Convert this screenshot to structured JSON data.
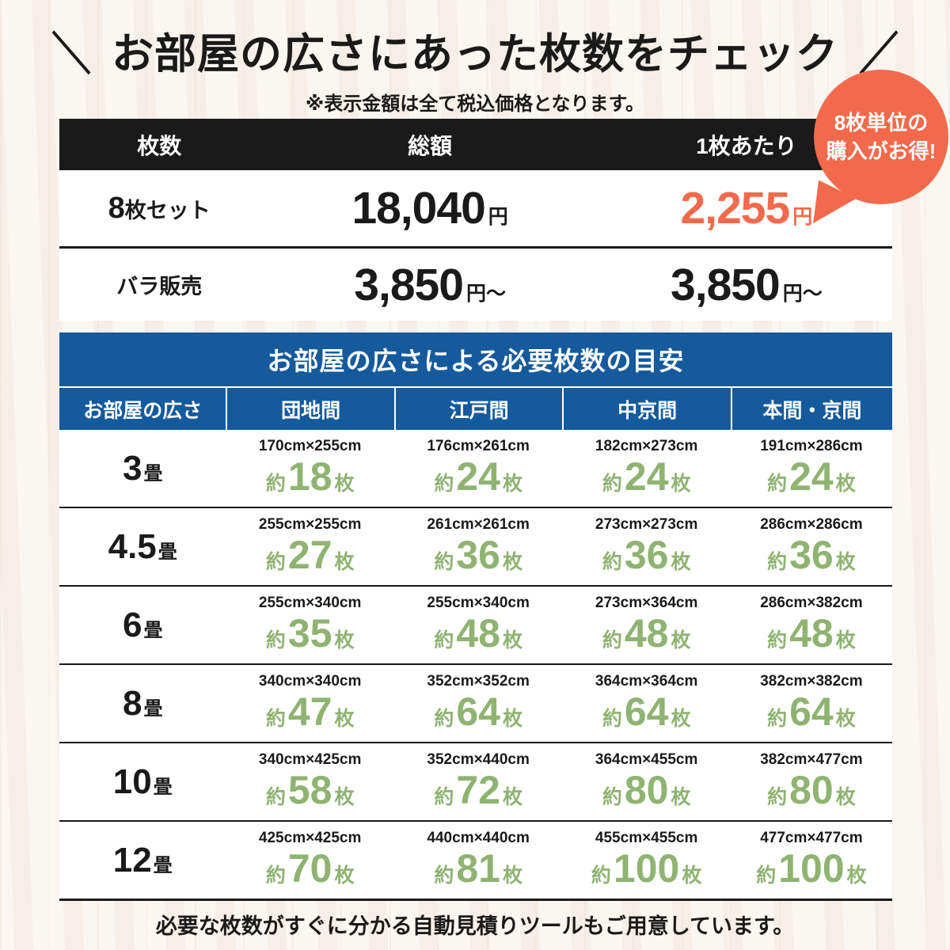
{
  "colors": {
    "accent_orange": "#F26A4B",
    "header_black": "#1A1A1A",
    "table_blue": "#155A9C",
    "count_green": "#8FB371",
    "background_cream": "#F8F2EB"
  },
  "header": {
    "decor_left": "＼",
    "decor_right": "／",
    "title": "お部屋の広さにあった枚数をチェック",
    "subtitle": "※表示金額は全て税込価格となります。"
  },
  "badge": {
    "line1": "8枚単位の",
    "line2": "購入がお得!"
  },
  "price_table": {
    "headers": [
      "枚数",
      "総額",
      "1枚あたり"
    ],
    "rows": [
      {
        "label_num": "8",
        "label_text": "枚セット",
        "total": "18,040",
        "total_suffix": "円",
        "per": "2,255",
        "per_suffix": "円"
      },
      {
        "label_num": "",
        "label_text": "バラ販売",
        "total": "3,850",
        "total_suffix": "円〜",
        "per": "3,850",
        "per_suffix": "円〜"
      }
    ]
  },
  "size_table": {
    "title": "お部屋の広さによる必要枚数の目安",
    "headers": [
      "お部屋の広さ",
      "団地間",
      "江戸間",
      "中京間",
      "本間・京間"
    ],
    "labels": {
      "approx": "約",
      "sheets": "枚",
      "tatami": "畳"
    },
    "rows": [
      {
        "size": "3",
        "cells": [
          {
            "dim": "170cm×255cm",
            "count": "18"
          },
          {
            "dim": "176cm×261cm",
            "count": "24"
          },
          {
            "dim": "182cm×273cm",
            "count": "24"
          },
          {
            "dim": "191cm×286cm",
            "count": "24"
          }
        ]
      },
      {
        "size": "4.5",
        "cells": [
          {
            "dim": "255cm×255cm",
            "count": "27"
          },
          {
            "dim": "261cm×261cm",
            "count": "36"
          },
          {
            "dim": "273cm×273cm",
            "count": "36"
          },
          {
            "dim": "286cm×286cm",
            "count": "36"
          }
        ]
      },
      {
        "size": "6",
        "cells": [
          {
            "dim": "255cm×340cm",
            "count": "35"
          },
          {
            "dim": "255cm×340cm",
            "count": "48"
          },
          {
            "dim": "273cm×364cm",
            "count": "48"
          },
          {
            "dim": "286cm×382cm",
            "count": "48"
          }
        ]
      },
      {
        "size": "8",
        "cells": [
          {
            "dim": "340cm×340cm",
            "count": "47"
          },
          {
            "dim": "352cm×352cm",
            "count": "64"
          },
          {
            "dim": "364cm×364cm",
            "count": "64"
          },
          {
            "dim": "382cm×382cm",
            "count": "64"
          }
        ]
      },
      {
        "size": "10",
        "cells": [
          {
            "dim": "340cm×425cm",
            "count": "58"
          },
          {
            "dim": "352cm×440cm",
            "count": "72"
          },
          {
            "dim": "364cm×455cm",
            "count": "80"
          },
          {
            "dim": "382cm×477cm",
            "count": "80"
          }
        ]
      },
      {
        "size": "12",
        "cells": [
          {
            "dim": "425cm×425cm",
            "count": "70"
          },
          {
            "dim": "440cm×440cm",
            "count": "81"
          },
          {
            "dim": "455cm×455cm",
            "count": "100"
          },
          {
            "dim": "477cm×477cm",
            "count": "100"
          }
        ]
      }
    ]
  },
  "footer": {
    "note": "必要な枚数がすぐに分かる自動見積りツールもご用意しています。"
  }
}
